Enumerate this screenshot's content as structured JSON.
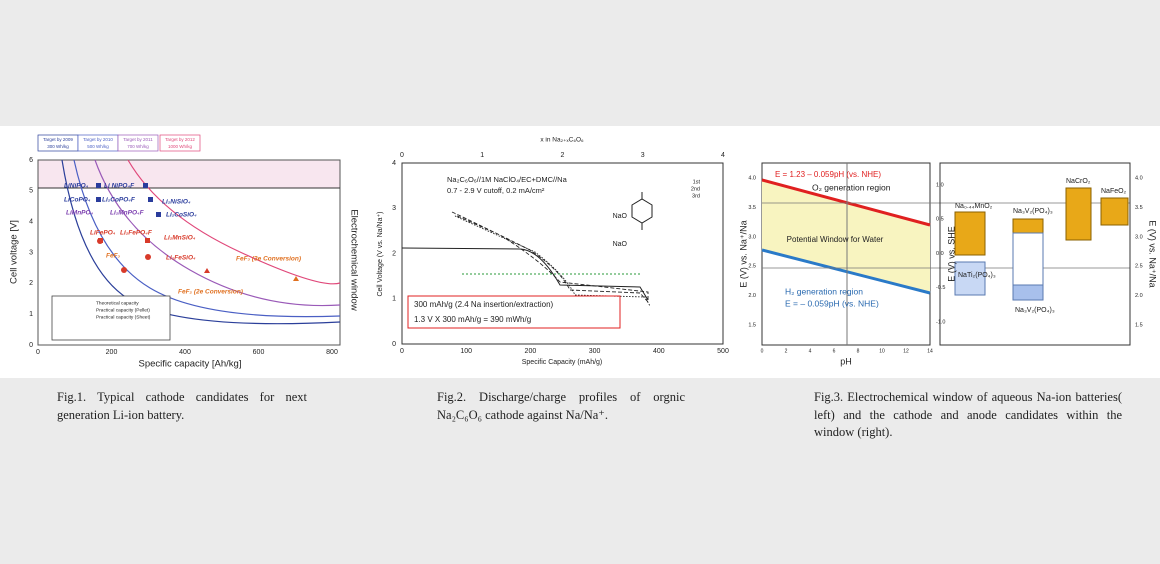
{
  "fig1": {
    "targets": [
      {
        "year": "Target by 2009",
        "energy": "300 Wh/kg"
      },
      {
        "year": "Target by 2010",
        "energy": "500 Wh/kg"
      },
      {
        "year": "Target by 2011",
        "energy": "700 Wh/kg"
      },
      {
        "year": "Target by 2012",
        "energy": "1000 Wh/kg"
      }
    ],
    "y_label": "Cell voltage [V]",
    "x_label": "Specific capacity [Ah/kg]",
    "window_label": "Electrochemical window",
    "yticks": [
      0,
      1,
      2,
      3,
      4,
      5,
      6
    ],
    "xticks": [
      0,
      200,
      400,
      600,
      800
    ],
    "materials": [
      "LiNiPO₄",
      "Li NiPO₄F",
      "LiCoPO₄",
      "Li₂CoPO₄F",
      "Li₂NiSiO₄",
      "Li₂CoSiO₄",
      "LiMnPO₄",
      "Li₂MnPO₄F",
      "Li₂MnSiO₄",
      "LiFePO₄",
      "Li₂FePO₄F",
      "FeF₃",
      "Li₂FeSiO₄",
      "FeF₃ (3e Conversion)",
      "FeF₂ (2e Conversion)"
    ],
    "legend": [
      "Theoretical capacity",
      "Practical capacity (Pellet)",
      "Practical capacity (Sheet)"
    ]
  },
  "fig2": {
    "top_label": "x in Na₂₊ₓC₆O₆",
    "top_ticks": [
      0,
      1,
      2,
      3,
      4
    ],
    "y_label": "Cell Voltage (V vs. Na/Na⁺)",
    "yticks": [
      0,
      1,
      2,
      3,
      4
    ],
    "x_label": "Specific Capacity (mAh/g)",
    "xticks": [
      0,
      100,
      200,
      300,
      400,
      500
    ],
    "cell": "Na₂C₆O₆//1M NaClO₄/EC+DMC//Na",
    "conditions": "0.7 - 2.9 V cutoff, 0.2 mA/cm²",
    "legend": [
      "1st",
      "2nd",
      "3rd"
    ],
    "groups": [
      "NaO",
      "NaO"
    ],
    "box": [
      "300 mAh/g (2.4 Na insertion/extraction)",
      "1.3 V X 300 mAh/g = 390 mWh/g"
    ]
  },
  "fig3": {
    "o2_equation": "E = 1.23 – 0.059pH (vs. NHE)",
    "o2_region": "O₂ generation region",
    "window": "Potential Window for Water",
    "h2_region": "H₂ generation region",
    "h2_equation": "E = – 0.059pH (vs. NHE)",
    "x_label": "pH",
    "xticks": [
      0,
      2,
      4,
      6,
      8,
      10,
      12,
      14
    ],
    "y_label": "E (V) vs. Na⁺/Na",
    "yticks": [
      "1.5",
      "2.0",
      "2.5",
      "3.0",
      "3.5",
      "4.0"
    ],
    "y2_label": "E (V) vs. SHE",
    "y2ticks": [
      "1.0",
      "0.5",
      "0.0",
      "-0.5",
      "-1.0"
    ],
    "materials": [
      "Na₀.₄₄MnO₂",
      "Na₃V₂(PO₄)₃",
      "NaCrO₂",
      "NaFeO₂",
      "NaTi₂(PO₄)₃",
      "Na₃V₂(PO₄)₃"
    ],
    "right_label": "E (V) vs. Na⁺/Na",
    "right_ticks": [
      "4.0",
      "3.5",
      "3.0",
      "2.5",
      "2.0",
      "1.5"
    ]
  },
  "captions": [
    "Fig.1. Typical cathode candidates for next generation Li-ion battery.",
    "Fig.2. Discharge/charge profiles of orgnic Na₂C₆O₆ cathode against Na/Na⁺.",
    "Fig.3. Electrochemical window of aqueous Na-ion batteries( left) and the cathode and anode candidates within the window (right)."
  ]
}
